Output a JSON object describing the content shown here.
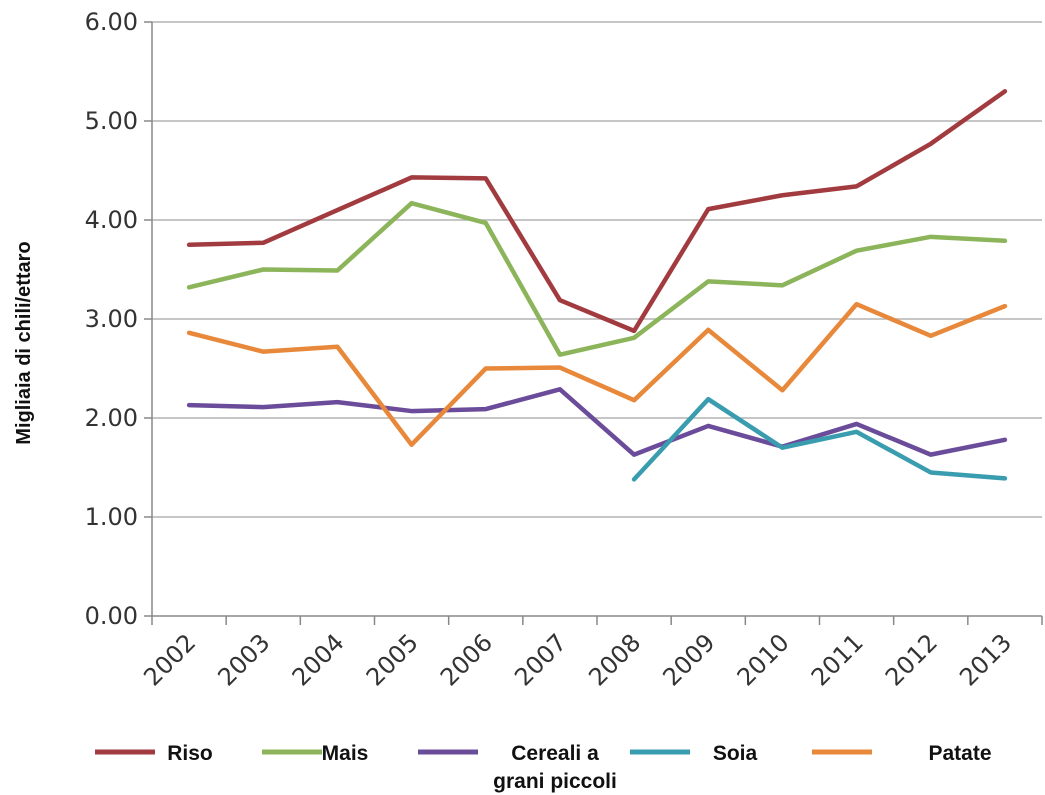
{
  "chart_data": {
    "type": "line",
    "title": "",
    "xlabel": "",
    "ylabel": "Migliaia di chili/ettaro",
    "ylim": [
      0,
      6
    ],
    "y_ticks": [
      "0.00",
      "1.00",
      "2.00",
      "3.00",
      "4.00",
      "5.00",
      "6.00"
    ],
    "categories": [
      "2002",
      "2003",
      "2004",
      "2005",
      "2006",
      "2007",
      "2008",
      "2009",
      "2010",
      "2011",
      "2012",
      "2013"
    ],
    "grid": "horizontal",
    "legend_position": "bottom",
    "series": [
      {
        "name": "Riso",
        "color": "#A23B3F",
        "values": [
          3.75,
          3.77,
          4.1,
          4.43,
          4.42,
          3.19,
          2.88,
          4.11,
          4.25,
          4.34,
          4.77,
          5.3
        ]
      },
      {
        "name": "Mais",
        "color": "#8CB45A",
        "values": [
          3.32,
          3.5,
          3.49,
          4.17,
          3.97,
          2.64,
          2.81,
          3.38,
          3.34,
          3.69,
          3.83,
          3.79
        ]
      },
      {
        "name": "Cereali a grani piccoli",
        "legend_lines": [
          "Cereali a",
          "grani piccoli"
        ],
        "color": "#6B4C9A",
        "values": [
          2.13,
          2.11,
          2.16,
          2.07,
          2.09,
          2.29,
          1.63,
          1.92,
          1.71,
          1.94,
          1.63,
          1.78
        ]
      },
      {
        "name": "Soia",
        "color": "#3A9DAF",
        "values": [
          null,
          null,
          null,
          null,
          null,
          null,
          1.38,
          2.19,
          1.7,
          1.86,
          1.45,
          1.39
        ]
      },
      {
        "name": "Patate",
        "color": "#E8883A",
        "values": [
          2.86,
          2.67,
          2.72,
          1.73,
          2.5,
          2.51,
          2.18,
          2.89,
          2.28,
          3.15,
          2.83,
          3.13
        ]
      }
    ]
  }
}
